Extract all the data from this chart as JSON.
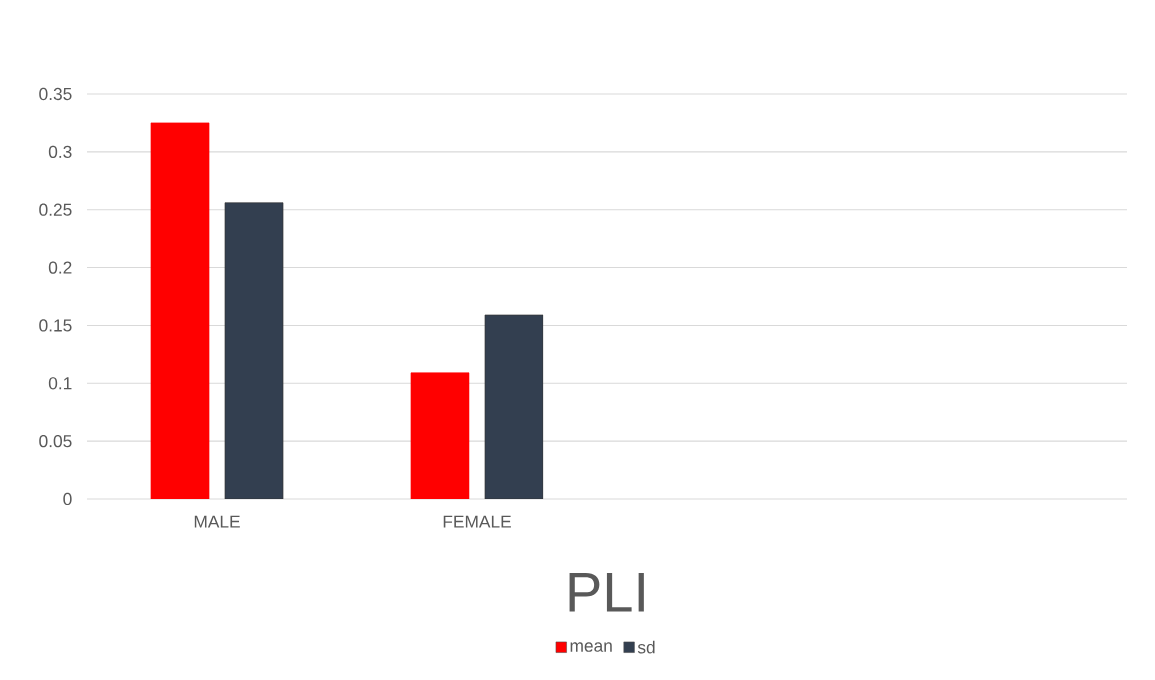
{
  "chart_data": {
    "type": "bar",
    "title": "PLI",
    "categories": [
      "MALE",
      "FEMALE",
      null,
      null
    ],
    "series": [
      {
        "name": "mean",
        "color": "#ff0000",
        "values": [
          0.325,
          0.109,
          null,
          null
        ]
      },
      {
        "name": "sd",
        "color": "#333f50",
        "values": [
          0.256,
          0.159,
          null,
          null
        ]
      }
    ],
    "ylim": [
      0,
      0.35
    ],
    "yticks": [
      0,
      0.05,
      0.1,
      0.15,
      0.2,
      0.25,
      0.3,
      0.35
    ],
    "grid": "y",
    "legend": "bottom"
  }
}
